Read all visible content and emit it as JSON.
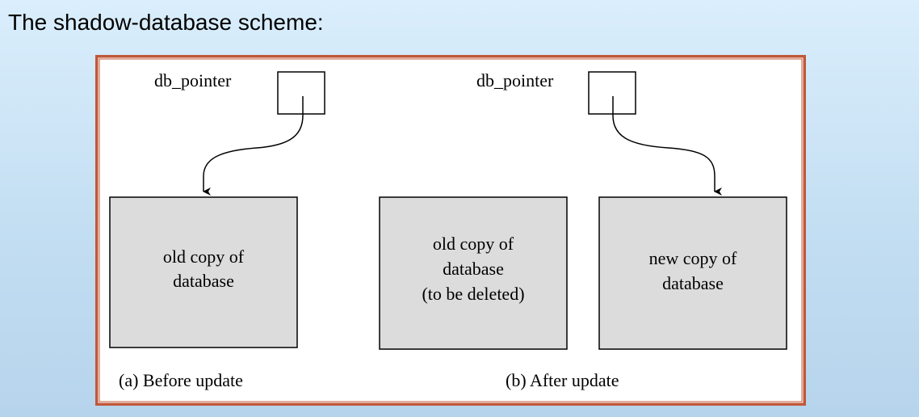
{
  "slide": {
    "title": "The shadow-database scheme:"
  },
  "diagram": {
    "pointer_label_a": "db_pointer",
    "pointer_label_b": "db_pointer",
    "box_a_old": [
      "old copy of",
      "database"
    ],
    "box_b_old": [
      "old copy of",
      "database",
      "(to be deleted)"
    ],
    "box_b_new": [
      "new copy of",
      "database"
    ],
    "caption_a": "(a) Before update",
    "caption_b": "(b) After update",
    "colors": {
      "frame": "#c0583a",
      "box_fill": "#dcdcdc",
      "background_top": "#daeefc",
      "background_bottom": "#b6d4ec"
    }
  }
}
